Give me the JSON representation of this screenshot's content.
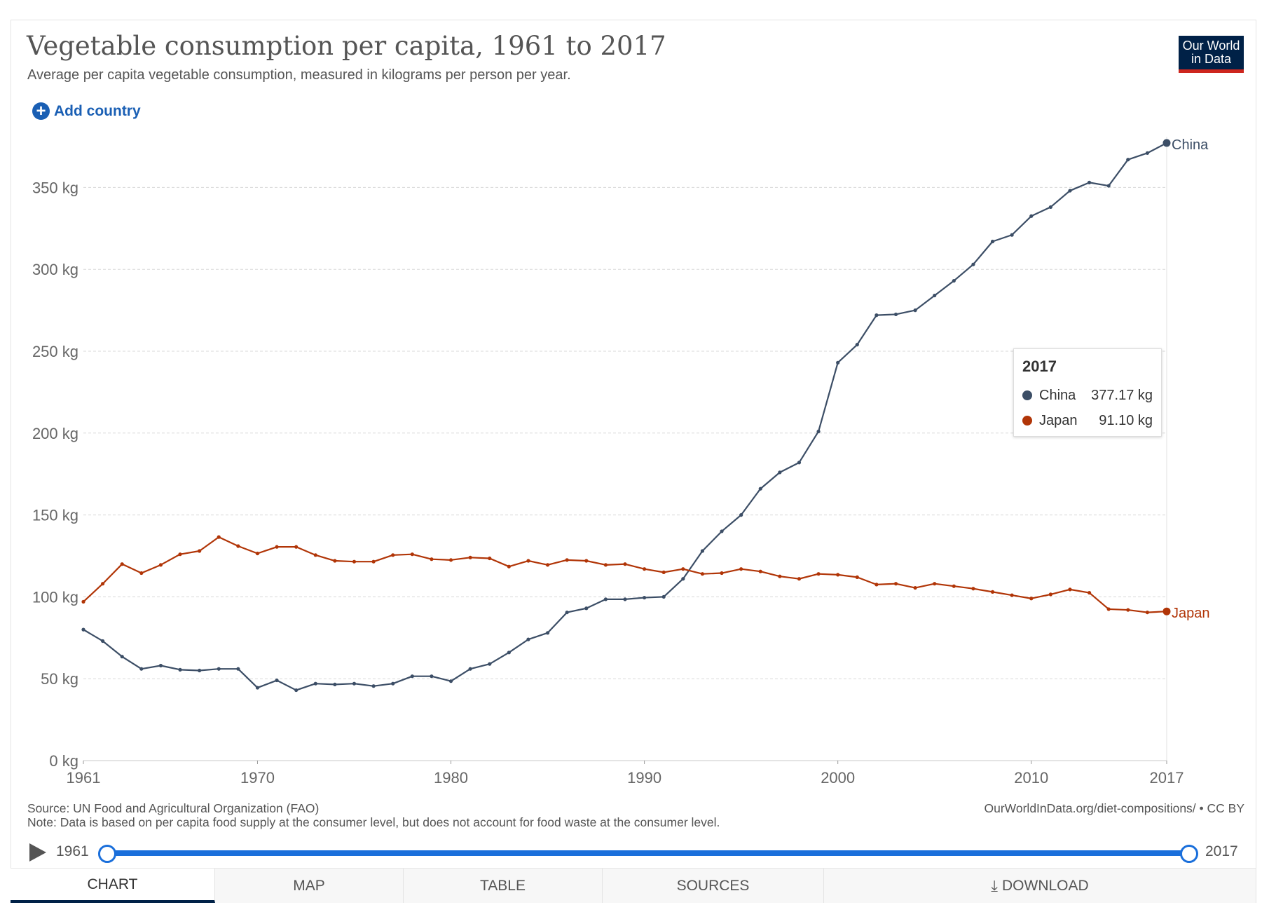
{
  "header": {
    "title": "Vegetable consumption per capita, 1961 to 2017",
    "subtitle": "Average per capita vegetable consumption, measured in kilograms per person per year.",
    "logo_line1": "Our World",
    "logo_line2": "in Data",
    "add_country_label": "Add country"
  },
  "colors": {
    "china": "#3c4e66",
    "japan": "#b13507",
    "accent": "#1a6fdb",
    "logo_bg": "#002147",
    "logo_bar": "#ce261e"
  },
  "chart_data": {
    "type": "line",
    "title": "Vegetable consumption per capita, 1961 to 2017",
    "ylabel": "kg per person per year",
    "xlabel": "",
    "ylim": [
      0,
      377.17
    ],
    "xlim": [
      1961,
      2017
    ],
    "y_ticks": [
      0,
      50,
      100,
      150,
      200,
      250,
      300,
      350
    ],
    "y_tick_labels": [
      "0 kg",
      "50 kg",
      "100 kg",
      "150 kg",
      "200 kg",
      "250 kg",
      "300 kg",
      "350 kg"
    ],
    "x_ticks": [
      1961,
      1970,
      1980,
      1990,
      2000,
      2010,
      2017
    ],
    "x_tick_labels": [
      "1961",
      "1970",
      "1980",
      "1990",
      "2000",
      "2010",
      "2017"
    ],
    "grid": "horizontal dashed",
    "x": [
      1961,
      1962,
      1963,
      1964,
      1965,
      1966,
      1967,
      1968,
      1969,
      1970,
      1971,
      1972,
      1973,
      1974,
      1975,
      1976,
      1977,
      1978,
      1979,
      1980,
      1981,
      1982,
      1983,
      1984,
      1985,
      1986,
      1987,
      1988,
      1989,
      1990,
      1991,
      1992,
      1993,
      1994,
      1995,
      1996,
      1997,
      1998,
      1999,
      2000,
      2001,
      2002,
      2003,
      2004,
      2005,
      2006,
      2007,
      2008,
      2009,
      2010,
      2011,
      2012,
      2013,
      2014,
      2015,
      2016,
      2017
    ],
    "series": [
      {
        "name": "China",
        "color_key": "china",
        "values": [
          80,
          73,
          63.5,
          56,
          58,
          55.5,
          55,
          56,
          56,
          44.5,
          49,
          43,
          47,
          46.5,
          47,
          45.5,
          47,
          51.5,
          51.5,
          48.5,
          56,
          59,
          66,
          74,
          78,
          90.5,
          93,
          98.5,
          98.5,
          99.5,
          100,
          111,
          128,
          140,
          150,
          166,
          176,
          182,
          201,
          243,
          254,
          272,
          272.5,
          275,
          284,
          293,
          303,
          317,
          321,
          332.5,
          338,
          348,
          353,
          351,
          367,
          371,
          377.17
        ]
      },
      {
        "name": "Japan",
        "color_key": "japan",
        "values": [
          97,
          108,
          120,
          114.5,
          119.5,
          126,
          128,
          136.5,
          131,
          126.5,
          130.5,
          130.5,
          125.5,
          122,
          121.5,
          121.5,
          125.5,
          126,
          123,
          122.5,
          124,
          123.5,
          118.5,
          122,
          119.5,
          122.5,
          122,
          119.5,
          120,
          117,
          115,
          117,
          114,
          114.5,
          117,
          115.5,
          112.5,
          111,
          114,
          113.5,
          112,
          107.5,
          108,
          105.5,
          108,
          106.5,
          105,
          103,
          101,
          99,
          101.5,
          104.5,
          102.5,
          92.5,
          92,
          90.5,
          91.1
        ]
      }
    ],
    "end_labels": [
      "China",
      "Japan"
    ]
  },
  "tooltip": {
    "year": "2017",
    "rows": [
      {
        "name": "China",
        "value": "377.17 kg",
        "color_key": "china"
      },
      {
        "name": "Japan",
        "value": "91.10 kg",
        "color_key": "japan"
      }
    ]
  },
  "footer": {
    "source": "Source: UN Food and Agricultural Organization (FAO)",
    "note": "Note: Data is based on per capita food supply at the consumer level, but does not account for food waste at the consumer level.",
    "credit": "OurWorldInData.org/diet-compositions/ • CC BY"
  },
  "timeline": {
    "start": "1961",
    "end": "2017"
  },
  "tabs": [
    {
      "label": "CHART",
      "active": true
    },
    {
      "label": "MAP",
      "active": false
    },
    {
      "label": "TABLE",
      "active": false
    },
    {
      "label": "SOURCES",
      "active": false
    },
    {
      "label": "DOWNLOAD",
      "active": false
    }
  ]
}
